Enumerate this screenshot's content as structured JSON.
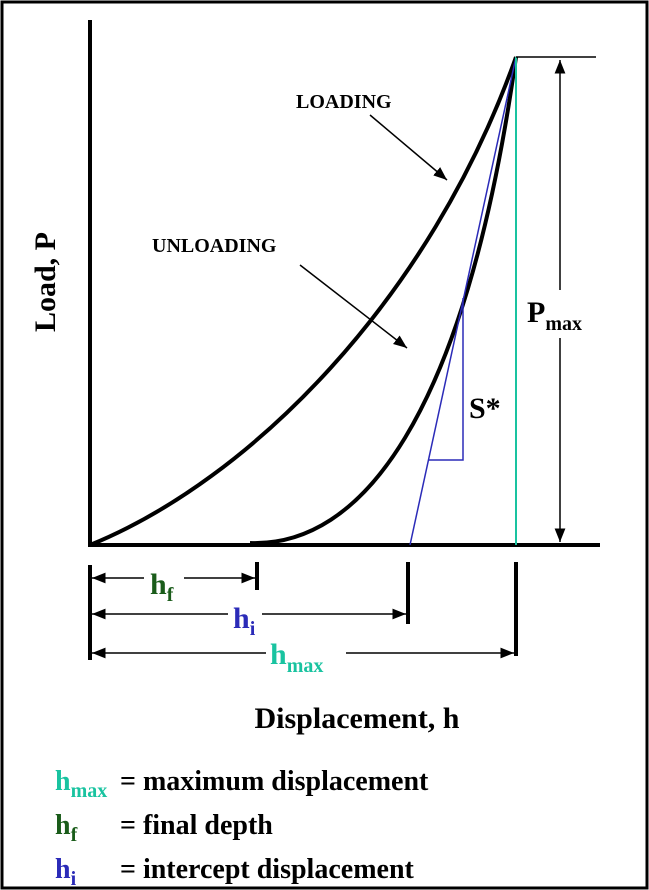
{
  "axes": {
    "y_label": "Load, P",
    "x_label": "Displacement, h"
  },
  "annotations": {
    "loading": "LOADING",
    "unloading": "UNLOADING",
    "stiffness": "S*",
    "pmax": {
      "symbol": "P",
      "subscript": "max"
    }
  },
  "dimensions": [
    {
      "symbol": "h",
      "subscript": "f"
    },
    {
      "symbol": "h",
      "subscript": "i"
    },
    {
      "symbol": "h",
      "subscript": "max"
    }
  ],
  "legend": [
    {
      "symbol": "h",
      "subscript": "max",
      "text": "= maximum displacement"
    },
    {
      "symbol": "h",
      "subscript": "f",
      "text": "= final depth"
    },
    {
      "symbol": "h",
      "subscript": "i",
      "text": "= intercept displacement"
    }
  ]
}
